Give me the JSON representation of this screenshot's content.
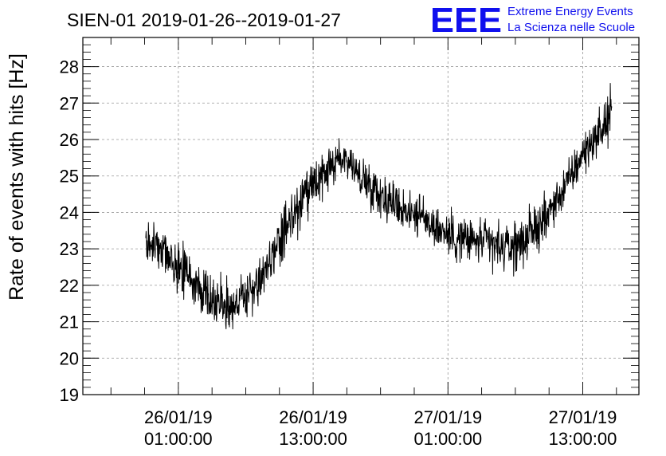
{
  "chart_data": {
    "type": "line",
    "title": "SIEN-01 2019-01-26--2019-01-27",
    "ylabel": "Rate of events with hits [Hz]",
    "xlabel": "",
    "ylim": [
      19,
      28.8
    ],
    "yticks": [
      19,
      20,
      21,
      22,
      23,
      24,
      25,
      26,
      27,
      28
    ],
    "xlim_hours": [
      -8.5,
      41
    ],
    "xticks": [
      {
        "hour": 0,
        "date": "26/01/19",
        "time": "01:00:00"
      },
      {
        "hour": 12,
        "date": "26/01/19",
        "time": "13:00:00"
      },
      {
        "hour": 24,
        "date": "27/01/19",
        "time": "01:00:00"
      },
      {
        "hour": 36,
        "date": "27/01/19",
        "time": "13:00:00"
      }
    ],
    "grid": true,
    "line_color": "#000000",
    "series": [
      {
        "x_hours": [
          -2.9,
          -2.0,
          -1.0,
          0.0,
          1.0,
          2.0,
          3.0,
          4.0,
          5.0,
          6.0,
          7.0,
          8.0,
          9.0,
          10.0,
          11.0,
          12.0,
          13.0,
          14.0,
          15.0,
          16.0,
          17.0,
          18.0,
          19.0,
          20.0,
          21.0,
          22.0,
          23.0,
          24.0,
          25.0,
          26.0,
          27.0,
          28.0,
          29.0,
          30.0,
          31.0,
          32.0,
          33.0,
          34.0,
          35.0,
          36.0,
          37.0,
          38.0,
          38.6
        ],
        "values": [
          23.2,
          23.1,
          22.8,
          22.5,
          22.2,
          21.9,
          21.6,
          21.5,
          21.5,
          21.7,
          22.0,
          22.5,
          23.2,
          23.8,
          24.3,
          24.7,
          25.0,
          25.4,
          25.5,
          25.0,
          24.8,
          24.5,
          24.3,
          24.1,
          24.0,
          23.8,
          23.6,
          23.4,
          23.3,
          23.2,
          23.2,
          23.1,
          23.0,
          23.1,
          23.3,
          23.6,
          24.0,
          24.5,
          25.0,
          25.6,
          26.0,
          26.4,
          26.8
        ],
        "noise_half_range": [
          0.7,
          0.8,
          0.8,
          0.8,
          0.8,
          0.8,
          0.8,
          0.9,
          0.9,
          0.8,
          0.8,
          0.8,
          0.8,
          0.8,
          0.8,
          0.7,
          0.7,
          0.7,
          0.7,
          0.6,
          0.7,
          0.7,
          0.7,
          0.7,
          0.7,
          0.7,
          0.7,
          0.8,
          0.8,
          0.8,
          0.8,
          0.8,
          0.8,
          0.8,
          0.8,
          0.8,
          0.7,
          0.7,
          0.7,
          0.7,
          0.7,
          0.8,
          0.9
        ]
      }
    ]
  },
  "logo": {
    "letters": "EEE",
    "line1": "Extreme Energy Events",
    "line2": "La Scienza nelle Scuole"
  }
}
